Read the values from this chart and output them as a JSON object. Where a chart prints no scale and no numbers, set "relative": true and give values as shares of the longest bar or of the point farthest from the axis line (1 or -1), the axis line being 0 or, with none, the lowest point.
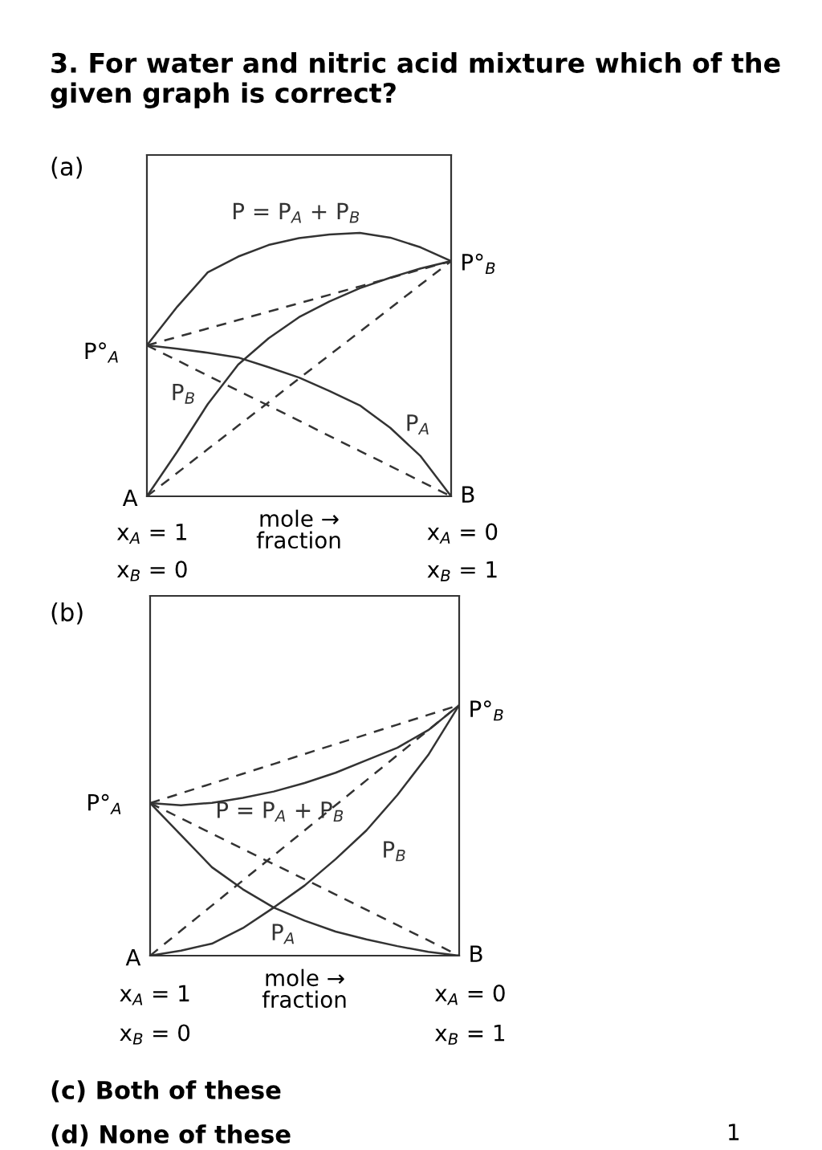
{
  "chart_data": [
    {
      "type": "line",
      "title": "(a)",
      "relative": true,
      "xlabel": "mole →\nfraction",
      "categories": [
        null,
        null,
        null,
        null,
        null,
        null,
        null,
        null,
        null,
        null,
        null
      ],
      "series": [
        {
          "name": "P = P$_{A}$ + P$_{B}$",
          "color": "#333333",
          "line_style": "solid",
          "values": [
            0.573,
            0.72,
            0.85,
            0.91,
            0.954,
            0.98,
            0.994,
            1.0,
            0.982,
            0.945,
            0.893
          ]
        },
        {
          "name": "P$_{A}$",
          "color": "#333333",
          "line_style": "solid",
          "values": [
            0.573,
            0.56,
            0.545,
            0.527,
            0.49,
            0.451,
            0.4,
            0.345,
            0.26,
            0.152,
            0
          ]
        },
        {
          "name": "P$_{B}$",
          "color": "#333333",
          "line_style": "solid",
          "values": [
            0,
            0.17,
            0.35,
            0.5,
            0.6,
            0.68,
            0.74,
            0.79,
            0.83,
            0.865,
            0.893
          ]
        },
        {
          "color": "#333333",
          "line_style": "dashed",
          "values": [
            0.573,
            0.605,
            0.637,
            0.669,
            0.701,
            0.733,
            0.765,
            0.797,
            0.829,
            0.861,
            0.893
          ]
        },
        {
          "color": "#333333",
          "line_style": "dashed",
          "values": [
            0.573,
            0.516,
            0.458,
            0.401,
            0.344,
            0.287,
            0.229,
            0.172,
            0.115,
            0.057,
            0
          ]
        },
        {
          "color": "#333333",
          "line_style": "dashed",
          "values": [
            0,
            0.089,
            0.179,
            0.268,
            0.357,
            0.447,
            0.536,
            0.625,
            0.714,
            0.804,
            0.893
          ]
        }
      ],
      "annotations": [
        "P°$_{A}$",
        "P°$_{B}$",
        "A",
        "B",
        "x$_{A}$ = 1",
        "x$_{B}$ = 0",
        "x$_{A}$ = 0",
        "x$_{B}$ = 1",
        "3. For water and nitric acid mixture which of the given graph is correct?"
      ]
    },
    {
      "type": "line",
      "title": "(b)",
      "relative": true,
      "xlabel": "mole →\nfraction",
      "categories": [
        null,
        null,
        null,
        null,
        null,
        null,
        null,
        null,
        null,
        null,
        null
      ],
      "series": [
        {
          "name": "P = P$_{A}$ + P$_{B}$",
          "color": "#333333",
          "line_style": "solid",
          "values": [
            0.609,
            0.6,
            0.61,
            0.63,
            0.655,
            0.689,
            0.73,
            0.78,
            0.83,
            0.9,
            1.0
          ]
        },
        {
          "name": "P$_{B}$",
          "color": "#333333",
          "line_style": "solid",
          "values": [
            0,
            0.02,
            0.048,
            0.11,
            0.192,
            0.28,
            0.385,
            0.5,
            0.641,
            0.801,
            1.0
          ]
        },
        {
          "name": "P$_{A}$",
          "color": "#333333",
          "line_style": "solid",
          "values": [
            0.609,
            0.481,
            0.353,
            0.265,
            0.192,
            0.14,
            0.096,
            0.065,
            0.038,
            0.015,
            0
          ]
        },
        {
          "color": "#333333",
          "line_style": "dashed",
          "values": [
            0.609,
            0.648,
            0.687,
            0.726,
            0.765,
            0.805,
            0.844,
            0.883,
            0.922,
            0.961,
            1.0
          ]
        },
        {
          "color": "#333333",
          "line_style": "dashed",
          "values": [
            0.609,
            0.548,
            0.487,
            0.426,
            0.365,
            0.305,
            0.244,
            0.183,
            0.122,
            0.061,
            0
          ]
        },
        {
          "color": "#333333",
          "line_style": "dashed",
          "values": [
            0,
            0.1,
            0.2,
            0.3,
            0.4,
            0.5,
            0.6,
            0.7,
            0.8,
            0.9,
            1.0
          ]
        }
      ],
      "annotations": [
        "P°$_{A}$",
        "P°$_{B}$",
        "A",
        "B",
        "x$_{A}$ = 1",
        "x$_{B}$ = 0",
        "x$_{A}$ = 0",
        "x$_{B}$ = 1",
        "(c) Both of these",
        "(d) None of these",
        "1"
      ]
    }
  ]
}
